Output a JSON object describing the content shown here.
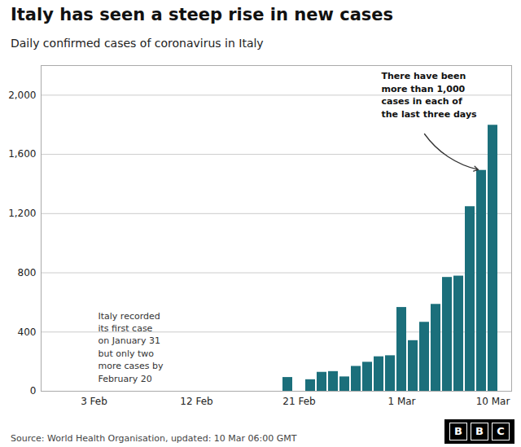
{
  "chart_data": {
    "type": "bar",
    "title": "Italy has seen a steep rise in new cases",
    "subtitle": "Daily confirmed cases of coronavirus in Italy",
    "source": "Source: World Health Organisation, updated: 10 Mar 06:00 GMT",
    "logo": "BBC",
    "categories": [
      null,
      null,
      null,
      "3 Feb",
      null,
      null,
      null,
      null,
      null,
      null,
      null,
      null,
      "12 Feb",
      null,
      null,
      null,
      null,
      null,
      null,
      null,
      null,
      "21 Feb",
      null,
      null,
      null,
      null,
      null,
      null,
      null,
      null,
      "1 Mar",
      null,
      null,
      null,
      null,
      null,
      null,
      null,
      "10 Mar"
    ],
    "values": [
      0,
      0,
      0,
      0,
      0,
      0,
      0,
      0,
      0,
      0,
      0,
      0,
      0,
      0,
      0,
      0,
      0,
      0,
      0,
      0,
      93,
      0,
      78,
      128,
      133,
      97,
      168,
      196,
      233,
      240,
      566,
      342,
      466,
      587,
      769,
      778,
      1247,
      1492,
      1797
    ],
    "color": "#1b6f7b",
    "ylim": [
      0,
      2200
    ],
    "yticks": [
      0,
      400,
      800,
      {
        "value": 1200,
        "label": "1,200"
      },
      {
        "value": 1600,
        "label": "1,600"
      },
      {
        "value": 2000,
        "label": "2,000"
      }
    ],
    "grid": true,
    "annotations": [
      "Italy recorded\nits first case\non January 31\nbut only two\nmore cases by\nFebruary 20",
      "There have been\nmore than 1,000\ncases in each of\nthe last three days"
    ]
  }
}
